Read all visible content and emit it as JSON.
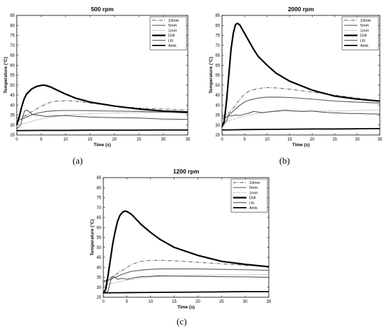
{
  "figures": [
    {
      "caption": "(a)"
    },
    {
      "caption": "(b)"
    },
    {
      "caption": "(c)"
    }
  ],
  "chart_data": [
    {
      "type": "line",
      "title": "500 rpm",
      "xlabel": "Time (s)",
      "ylabel": "Temperature (°C)",
      "xlim": [
        0,
        35
      ],
      "ylim": [
        25,
        85
      ],
      "xticks": [
        0,
        5,
        10,
        15,
        20,
        25,
        30,
        35
      ],
      "yticks": [
        25,
        30,
        35,
        40,
        45,
        50,
        55,
        60,
        65,
        70,
        75,
        80,
        85
      ],
      "legend_position": "top-right",
      "series": [
        {
          "name": "10mm",
          "style": "dashdot",
          "width": 1,
          "color": "#555555",
          "x": [
            0,
            1,
            2,
            3,
            4,
            5,
            6,
            7,
            8,
            10,
            12,
            15,
            20,
            25,
            30,
            35
          ],
          "y": [
            33.5,
            34,
            35,
            36.5,
            38,
            39.5,
            40.5,
            41.5,
            42,
            42.2,
            42,
            41,
            39.5,
            38.5,
            38,
            37.5
          ]
        },
        {
          "name": "5mm",
          "style": "solid",
          "width": 1.2,
          "color": "#666666",
          "x": [
            0,
            1,
            2,
            3,
            4,
            5,
            6,
            8,
            10,
            12,
            15,
            20,
            25,
            30,
            35
          ],
          "y": [
            32,
            33,
            34,
            35,
            35.8,
            36.3,
            36.8,
            37.2,
            37.3,
            37.3,
            37.2,
            37,
            36.8,
            36.5,
            36
          ]
        },
        {
          "name": "1mm",
          "style": "dotted",
          "width": 1,
          "color": "#888888",
          "x": [
            0,
            2,
            4,
            6,
            8,
            10,
            15,
            20,
            25,
            30,
            35
          ],
          "y": [
            30,
            31,
            32.5,
            33.5,
            34.3,
            35,
            35.7,
            36,
            36.2,
            36.3,
            36.4
          ]
        },
        {
          "name": "Drill",
          "style": "solid",
          "width": 2.2,
          "color": "#000000",
          "x": [
            0,
            0.5,
            1,
            1.5,
            2,
            3,
            4,
            5,
            5.5,
            6,
            7,
            8,
            10,
            12,
            15,
            20,
            25,
            30,
            35
          ],
          "y": [
            30,
            34,
            39,
            43,
            45.5,
            48,
            49.3,
            49.9,
            50,
            49.8,
            49,
            47.8,
            45.5,
            43.5,
            41.5,
            39.5,
            38,
            37,
            36.5
          ]
        },
        {
          "name": "I.R.",
          "style": "solid",
          "width": 1,
          "color": "#444444",
          "x": [
            0,
            0.8,
            1.2,
            1.6,
            2,
            2.5,
            3,
            4,
            5,
            6,
            8,
            10,
            12,
            15,
            20,
            25,
            30,
            35
          ],
          "y": [
            28,
            30,
            34,
            37,
            37.5,
            36.8,
            35.5,
            35,
            34.7,
            34.3,
            34.6,
            34.8,
            34.4,
            34,
            33.7,
            33.5,
            33,
            32.8
          ]
        },
        {
          "name": "Amb.",
          "style": "solid",
          "width": 1.8,
          "color": "#000000",
          "x": [
            0,
            5,
            10,
            15,
            20,
            25,
            30,
            35
          ],
          "y": [
            27.2,
            27.3,
            27.3,
            27.4,
            27.4,
            27.4,
            27.5,
            27.5
          ]
        }
      ]
    },
    {
      "type": "line",
      "title": "2000 rpm",
      "xlabel": "Time (s)",
      "ylabel": "Temperature (°C)",
      "xlim": [
        0,
        35
      ],
      "ylim": [
        25,
        85
      ],
      "xticks": [
        0,
        5,
        10,
        15,
        20,
        25,
        30,
        35
      ],
      "yticks": [
        25,
        30,
        35,
        40,
        45,
        50,
        55,
        60,
        65,
        70,
        75,
        80,
        85
      ],
      "legend_position": "top-right",
      "series": [
        {
          "name": "10mm",
          "style": "dashdot",
          "width": 1,
          "color": "#555555",
          "x": [
            0,
            1,
            2,
            3,
            4,
            5,
            6,
            8,
            10,
            12,
            15,
            20,
            25,
            30,
            35
          ],
          "y": [
            34,
            35,
            37,
            40,
            43,
            45.5,
            47,
            48.3,
            48.8,
            48.6,
            48,
            46.5,
            45,
            43.5,
            42
          ]
        },
        {
          "name": "5mm",
          "style": "solid",
          "width": 1.2,
          "color": "#666666",
          "x": [
            0,
            1,
            2,
            3,
            4,
            5,
            6,
            8,
            10,
            12,
            15,
            20,
            25,
            30,
            35
          ],
          "y": [
            33,
            34,
            36,
            38,
            40,
            41.5,
            42.5,
            43.5,
            44,
            44,
            43.8,
            43,
            42,
            41.5,
            41
          ]
        },
        {
          "name": "1mm",
          "style": "dotted",
          "width": 1,
          "color": "#888888",
          "x": [
            0,
            2,
            4,
            6,
            8,
            10,
            15,
            20,
            25,
            30,
            35
          ],
          "y": [
            31,
            32.5,
            34,
            35,
            35.8,
            36.5,
            37,
            37,
            37,
            37.3,
            37.5
          ]
        },
        {
          "name": "Drill",
          "style": "solid",
          "width": 2.2,
          "color": "#000000",
          "x": [
            0,
            0.5,
            1,
            1.5,
            2,
            2.5,
            3,
            3.5,
            4,
            5,
            6,
            7,
            8,
            10,
            12,
            15,
            20,
            25,
            30,
            35
          ],
          "y": [
            29,
            32,
            42,
            55,
            68,
            76,
            80.5,
            81,
            80,
            76,
            72,
            68,
            64.5,
            60,
            56,
            52,
            47.5,
            44.5,
            43,
            42
          ]
        },
        {
          "name": "I.R.",
          "style": "solid",
          "width": 1,
          "color": "#444444",
          "x": [
            0,
            1,
            1.5,
            2,
            3,
            4,
            5,
            6,
            7,
            8,
            9,
            10,
            12,
            14,
            16,
            18,
            20,
            22,
            24,
            26,
            28,
            30,
            32,
            35
          ],
          "y": [
            29,
            32,
            35,
            34.5,
            35,
            34.8,
            35.5,
            36,
            36.8,
            36.5,
            36.2,
            36.5,
            37,
            37.5,
            37,
            36.8,
            37,
            36.5,
            36.2,
            36,
            35.8,
            35.8,
            35.6,
            35.5
          ]
        },
        {
          "name": "Amb.",
          "style": "solid",
          "width": 1.8,
          "color": "#000000",
          "x": [
            0,
            5,
            10,
            15,
            20,
            25,
            30,
            35
          ],
          "y": [
            27.5,
            27.7,
            27.8,
            27.9,
            28,
            28,
            28.1,
            28.2
          ]
        }
      ]
    },
    {
      "type": "line",
      "title": "1200 rpm",
      "xlabel": "Time (s)",
      "ylabel": "Temperature (°C)",
      "xlim": [
        0,
        35
      ],
      "ylim": [
        25,
        85
      ],
      "xticks": [
        0,
        5,
        10,
        15,
        20,
        25,
        30,
        35
      ],
      "yticks": [
        25,
        30,
        35,
        40,
        45,
        50,
        55,
        60,
        65,
        70,
        75,
        80,
        85
      ],
      "legend_position": "top-right",
      "series": [
        {
          "name": "10mm",
          "style": "dashdot",
          "width": 1,
          "color": "#555555",
          "x": [
            0,
            1,
            2,
            3,
            4,
            5,
            6,
            8,
            10,
            12,
            15,
            20,
            25,
            30,
            35
          ],
          "y": [
            33,
            34,
            35.5,
            37,
            38.5,
            40,
            41.5,
            43,
            43.5,
            43.5,
            43.3,
            42.5,
            41.8,
            41,
            40.5
          ]
        },
        {
          "name": "5mm",
          "style": "solid",
          "width": 1.2,
          "color": "#666666",
          "x": [
            0,
            1,
            2,
            3,
            4,
            5,
            6,
            8,
            10,
            12,
            15,
            20,
            25,
            30,
            35
          ],
          "y": [
            32.5,
            33.5,
            34.5,
            35.5,
            36.5,
            37.3,
            38,
            38.6,
            39,
            39.2,
            39.2,
            39.2,
            39,
            38.8,
            38.5
          ]
        },
        {
          "name": "1mm",
          "style": "dotted",
          "width": 1,
          "color": "#888888",
          "x": [
            0,
            2,
            4,
            6,
            8,
            10,
            15,
            20,
            25,
            30,
            35
          ],
          "y": [
            31,
            32,
            33,
            34,
            34.7,
            35.2,
            35.7,
            36,
            36.2,
            36.3,
            36.3
          ]
        },
        {
          "name": "Drill",
          "style": "solid",
          "width": 2.2,
          "color": "#000000",
          "x": [
            0,
            0.5,
            1,
            1.5,
            2,
            2.5,
            3,
            3.5,
            4,
            4.5,
            5,
            6,
            7,
            8,
            10,
            12,
            15,
            20,
            25,
            30,
            35
          ],
          "y": [
            27,
            29,
            36,
            44,
            52,
            58,
            63,
            66,
            67.5,
            68.2,
            68,
            66.5,
            64,
            61.5,
            57.5,
            54,
            50,
            46,
            43,
            41.5,
            40.3
          ]
        },
        {
          "name": "I.R.",
          "style": "solid",
          "width": 1,
          "color": "#444444",
          "x": [
            0,
            1,
            1.5,
            2,
            2.5,
            3,
            4,
            5,
            6,
            7,
            8,
            10,
            12,
            15,
            20,
            25,
            30,
            35
          ],
          "y": [
            27,
            28,
            33,
            35.5,
            35,
            34,
            34.5,
            34,
            34.5,
            35,
            35.3,
            35.5,
            35.8,
            35.6,
            35.5,
            35.3,
            35.2,
            35
          ]
        },
        {
          "name": "Amb.",
          "style": "solid",
          "width": 1.8,
          "color": "#000000",
          "x": [
            0,
            5,
            10,
            15,
            20,
            25,
            30,
            35
          ],
          "y": [
            27.2,
            27.3,
            27.4,
            27.5,
            27.6,
            27.7,
            27.8,
            27.8
          ]
        }
      ]
    }
  ]
}
